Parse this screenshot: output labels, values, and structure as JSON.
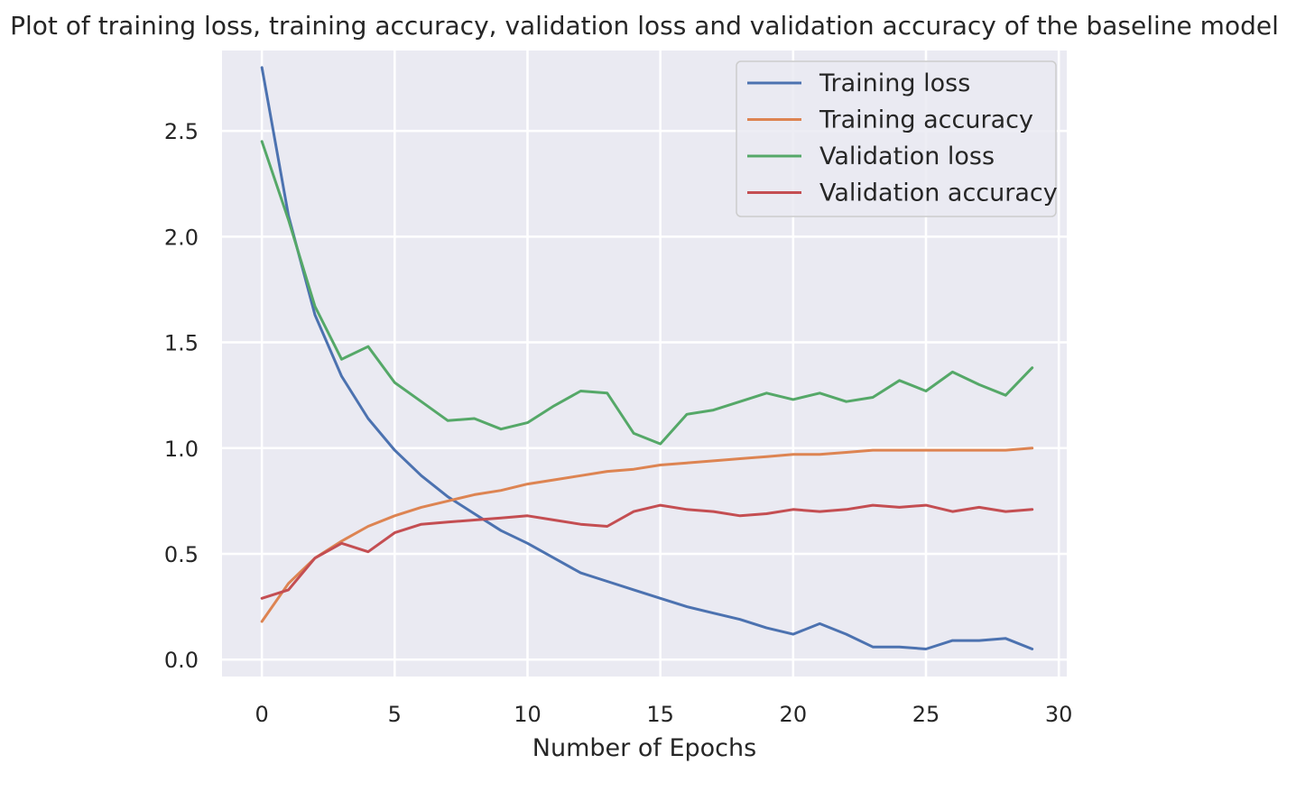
{
  "chart_data": {
    "type": "line",
    "title": "Plot of training loss, training accuracy, validation loss and validation accuracy of the baseline model",
    "xlabel": "Number of Epochs",
    "ylabel": "",
    "xlim": [
      -1.5,
      30.3
    ],
    "ylim": [
      -0.08,
      2.88
    ],
    "xticks": [
      0,
      5,
      10,
      15,
      20,
      25,
      30
    ],
    "yticks": [
      0.0,
      0.5,
      1.0,
      1.5,
      2.0,
      2.5
    ],
    "xtick_labels": [
      "0",
      "5",
      "10",
      "15",
      "20",
      "25",
      "30"
    ],
    "ytick_labels": [
      "0.0",
      "0.5",
      "1.0",
      "1.5",
      "2.0",
      "2.5"
    ],
    "grid": true,
    "legend_position": "top-right",
    "x": [
      0,
      1,
      2,
      3,
      4,
      5,
      6,
      7,
      8,
      9,
      10,
      11,
      12,
      13,
      14,
      15,
      16,
      17,
      18,
      19,
      20,
      21,
      22,
      23,
      24,
      25,
      26,
      27,
      28,
      29
    ],
    "series": [
      {
        "name": "Training loss",
        "color": "#4c72b0",
        "values": [
          2.8,
          2.1,
          1.63,
          1.34,
          1.14,
          0.99,
          0.87,
          0.77,
          0.69,
          0.61,
          0.55,
          0.48,
          0.41,
          0.37,
          0.33,
          0.29,
          0.25,
          0.22,
          0.19,
          0.15,
          0.12,
          0.17,
          0.12,
          0.06,
          0.06,
          0.05,
          0.09,
          0.09,
          0.1,
          0.05
        ]
      },
      {
        "name": "Training accuracy",
        "color": "#dd8452",
        "values": [
          0.18,
          0.36,
          0.48,
          0.56,
          0.63,
          0.68,
          0.72,
          0.75,
          0.78,
          0.8,
          0.83,
          0.85,
          0.87,
          0.89,
          0.9,
          0.92,
          0.93,
          0.94,
          0.95,
          0.96,
          0.97,
          0.97,
          0.98,
          0.99,
          0.99,
          0.99,
          0.99,
          0.99,
          0.99,
          1.0
        ]
      },
      {
        "name": "Validation loss",
        "color": "#55a868",
        "values": [
          2.45,
          2.08,
          1.67,
          1.42,
          1.48,
          1.31,
          1.22,
          1.13,
          1.14,
          1.09,
          1.12,
          1.2,
          1.27,
          1.26,
          1.07,
          1.02,
          1.16,
          1.18,
          1.22,
          1.26,
          1.23,
          1.26,
          1.22,
          1.24,
          1.32,
          1.27,
          1.36,
          1.3,
          1.25,
          1.38
        ]
      },
      {
        "name": "Validation accuracy",
        "color": "#c44e52",
        "values": [
          0.29,
          0.33,
          0.48,
          0.55,
          0.51,
          0.6,
          0.64,
          0.65,
          0.66,
          0.67,
          0.68,
          0.66,
          0.64,
          0.63,
          0.7,
          0.73,
          0.71,
          0.7,
          0.68,
          0.69,
          0.71,
          0.7,
          0.71,
          0.73,
          0.72,
          0.73,
          0.7,
          0.72,
          0.7,
          0.71
        ]
      }
    ],
    "plot_background": "#eaeaf2",
    "grid_color": "#ffffff"
  }
}
